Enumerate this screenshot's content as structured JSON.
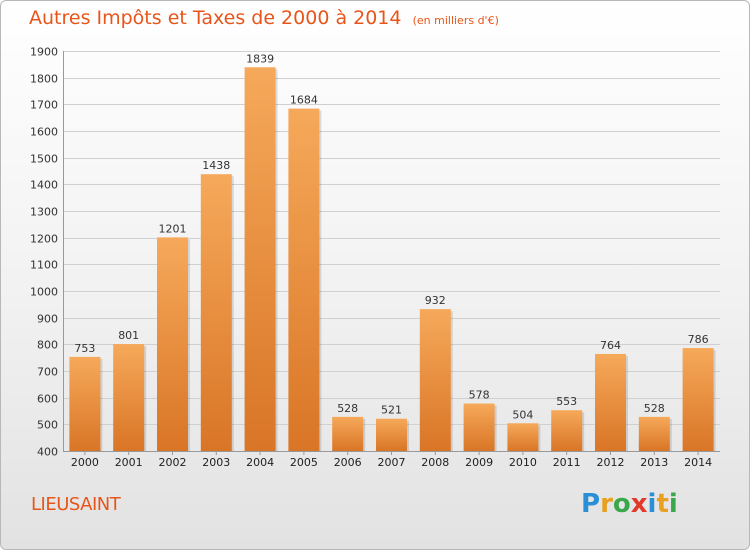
{
  "title": "Autres Impôts et Taxes de 2000 à 2014",
  "unit": "(en milliers d'€)",
  "place": "LIEUSAINT",
  "brand": {
    "text": "Proxiti",
    "letters": [
      "P",
      "r",
      "o",
      "x",
      "i",
      "t",
      "i"
    ],
    "colors": [
      "#2a8fd6",
      "#e8a020",
      "#3aa84a",
      "#e23a2a",
      "#2a8fd6",
      "#e8a020",
      "#3aa84a"
    ]
  },
  "colors": {
    "accent": "#e8551a",
    "bar_top": "#f6a95a",
    "bar_bottom": "#d97526",
    "grid": "#d0d0d0"
  },
  "chart_data": {
    "type": "bar",
    "categories": [
      "2000",
      "2001",
      "2002",
      "2003",
      "2004",
      "2005",
      "2006",
      "2007",
      "2008",
      "2009",
      "2010",
      "2011",
      "2012",
      "2013",
      "2014"
    ],
    "values": [
      753,
      801,
      1201,
      1438,
      1839,
      1684,
      528,
      521,
      932,
      578,
      504,
      553,
      764,
      528,
      786
    ],
    "ylim": [
      400,
      1900
    ],
    "yticks": [
      400,
      500,
      600,
      700,
      800,
      900,
      1000,
      1100,
      1200,
      1300,
      1400,
      1500,
      1600,
      1700,
      1800,
      1900
    ],
    "grid": true
  }
}
